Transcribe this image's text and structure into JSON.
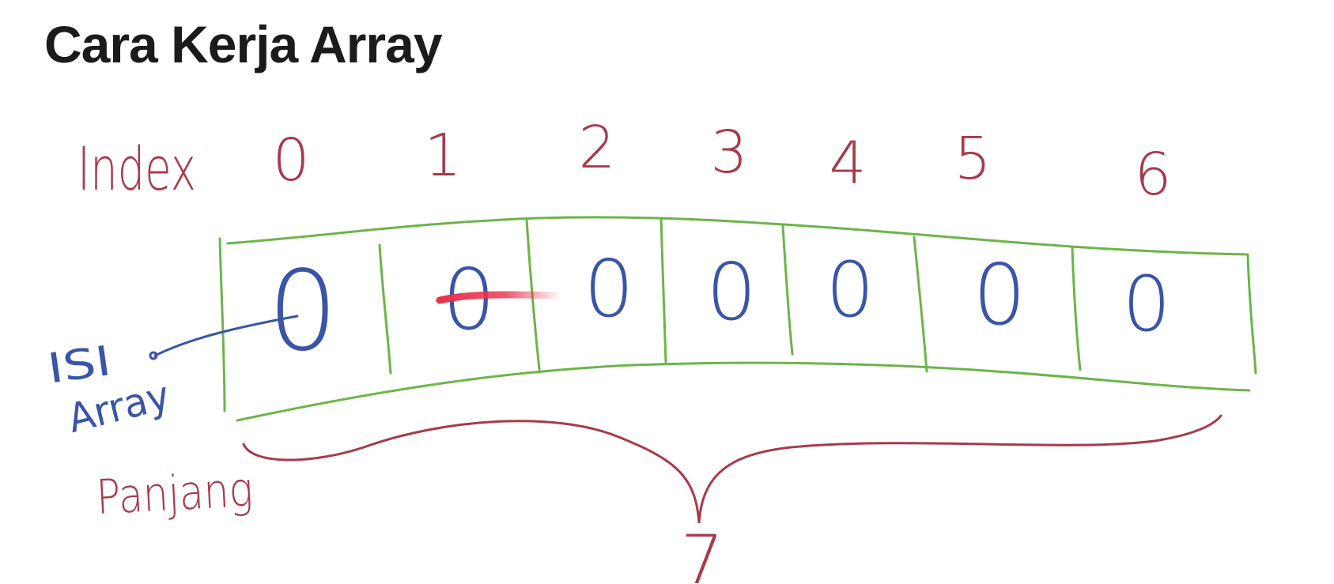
{
  "page": {
    "title": "Cara Kerja Array"
  },
  "diagram": {
    "index_label": "Index",
    "indices": [
      "0",
      "1",
      "2",
      "3",
      "4",
      "5",
      "6"
    ],
    "values": [
      "0",
      "0",
      "0",
      "0",
      "0",
      "0",
      "0"
    ],
    "value_label_line1": "ISI",
    "value_label_line2": "Array",
    "length_label": "Panjang",
    "length_value": "7",
    "colors": {
      "index": "#a83a4a",
      "cells": "#6cb548",
      "values": "#3a55a6",
      "highlight": "#e8324e"
    }
  }
}
